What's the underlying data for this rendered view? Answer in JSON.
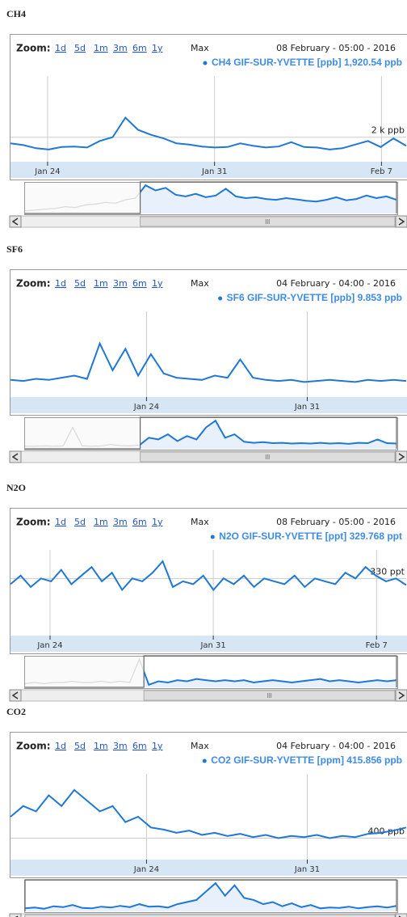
{
  "chart_data": [
    {
      "type": "line",
      "title": "CH4",
      "zoom_label": "Zoom:",
      "zoom_buttons": [
        "1d",
        "5d",
        "1m",
        "3m",
        "6m",
        "1y",
        "Max"
      ],
      "date_label": "08 February - 05:00 - 2016",
      "tooltip": "CH4 GIF-SUR-YVETTE [ppb] 1,920.54 ppb",
      "color": "#1f77d6",
      "grid": true,
      "values": [
        1975,
        1968,
        1955,
        1950,
        1960,
        1962,
        1958,
        1985,
        2000,
        2080,
        2030,
        2010,
        1995,
        1975,
        1970,
        1962,
        1958,
        1960,
        1975,
        1965,
        1958,
        1962,
        1980,
        1960,
        1958,
        1950,
        1955,
        1970,
        1985,
        1960,
        1995,
        1965
      ],
      "xlim": [
        0,
        32
      ],
      "xticks": [
        {
          "value": 3,
          "label": "Jan 24"
        },
        {
          "value": 16.5,
          "label": "Jan 31"
        },
        {
          "value": 30,
          "label": "Feb 7"
        }
      ],
      "ylim": [
        1900,
        2250
      ],
      "yticks": [
        {
          "value": 2000,
          "label": "2 k ppb"
        }
      ],
      "navigator_values": [
        1900,
        1905,
        1910,
        1915,
        1925,
        1920,
        1935,
        1940,
        1950,
        1945,
        1965,
        1975,
        2050,
        2020,
        2035,
        1995,
        1985,
        2000,
        1980,
        1990,
        2030,
        1985,
        1975,
        1980,
        1970,
        1965,
        1975,
        1968,
        1960,
        1955,
        1965,
        1980,
        1962,
        1970,
        1990,
        1975,
        1985,
        1965
      ]
    },
    {
      "type": "line",
      "title": "SF6",
      "zoom_label": "Zoom:",
      "zoom_buttons": [
        "1d",
        "5d",
        "1m",
        "3m",
        "6m",
        "1y",
        "Max"
      ],
      "date_label": "04 February - 04:00 - 2016",
      "tooltip": "SF6 GIF-SUR-YVETTE [ppb] 9.853 ppb",
      "color": "#1f77d6",
      "grid": true,
      "values": [
        9.86,
        9.85,
        9.87,
        9.86,
        9.88,
        9.9,
        9.87,
        10.2,
        9.95,
        10.15,
        9.9,
        10.1,
        9.92,
        9.88,
        9.87,
        9.86,
        9.9,
        9.88,
        10.05,
        9.88,
        9.86,
        9.85,
        9.86,
        9.84,
        9.85,
        9.86,
        9.85,
        9.84,
        9.86,
        9.85,
        9.86,
        9.85
      ],
      "xlim": [
        0,
        32
      ],
      "xticks": [
        {
          "value": 11,
          "label": "Jan 24"
        },
        {
          "value": 24,
          "label": "Jan 31"
        }
      ],
      "ylim": [
        9.7,
        10.5
      ],
      "yticks": [],
      "navigator_values": [
        9.85,
        9.85,
        9.86,
        9.85,
        9.86,
        10.4,
        9.86,
        9.85,
        9.86,
        9.9,
        9.87,
        9.86,
        9.88,
        10.1,
        10.05,
        10.2,
        10.0,
        10.15,
        10.05,
        10.4,
        10.6,
        10.1,
        10.2,
        9.98,
        9.95,
        9.97,
        9.94,
        9.95,
        9.93,
        9.94,
        9.93,
        9.95,
        9.93,
        9.94,
        9.92,
        9.95,
        9.94,
        10.05,
        9.94,
        9.93
      ]
    },
    {
      "type": "line",
      "title": "N2O",
      "zoom_label": "Zoom:",
      "zoom_buttons": [
        "1d",
        "5d",
        "1m",
        "3m",
        "6m",
        "1y",
        "Max"
      ],
      "date_label": "08 February - 05:00 - 2016",
      "tooltip": "N2O GIF-SUR-YVETTE [ppt] 329.768 ppt",
      "color": "#1f77d6",
      "grid": true,
      "values": [
        329.8,
        330.1,
        329.7,
        330.0,
        329.9,
        330.3,
        329.8,
        330.1,
        330.4,
        329.9,
        330.2,
        329.6,
        330.0,
        329.9,
        330.2,
        330.6,
        329.7,
        329.9,
        329.8,
        330.1,
        329.6,
        330.0,
        329.8,
        330.1,
        329.7,
        330.0,
        329.9,
        329.8,
        330.1,
        329.7,
        330.0,
        329.9,
        329.8,
        330.2,
        330.0,
        330.4,
        330.1,
        329.9,
        330.0,
        329.77
      ],
      "xlim": [
        0,
        40
      ],
      "xticks": [
        {
          "value": 4,
          "label": "Jan 24"
        },
        {
          "value": 20.5,
          "label": "Jan 31"
        },
        {
          "value": 37,
          "label": "Feb 7"
        }
      ],
      "ylim": [
        328,
        331
      ],
      "yticks": [
        {
          "value": 330,
          "label": "330 ppt"
        }
      ],
      "navigator_values": [
        329.4,
        329.5,
        329.4,
        329.5,
        329.5,
        329.6,
        329.5,
        329.5,
        329.6,
        329.5,
        329.6,
        329.5,
        331.5,
        329.3,
        329.6,
        329.5,
        329.7,
        329.6,
        329.8,
        329.7,
        329.6,
        329.7,
        329.6,
        329.7,
        329.5,
        329.6,
        329.7,
        329.6,
        329.5,
        329.6,
        329.7,
        329.8,
        329.6,
        329.7,
        329.6,
        329.5,
        329.6,
        329.7,
        329.6,
        329.7
      ]
    },
    {
      "type": "line",
      "title": "CO2",
      "zoom_label": "Zoom:",
      "zoom_buttons": [
        "1d",
        "5d",
        "1m",
        "3m",
        "6m",
        "1y",
        "Max"
      ],
      "date_label": "04 February - 04:00 - 2016",
      "tooltip": "CO2 GIF-SUR-YVETTE [ppm] 415.856 ppb",
      "color": "#1f77d6",
      "grid": true,
      "values": [
        420,
        430,
        425,
        440,
        430,
        445,
        435,
        425,
        430,
        415,
        420,
        410,
        408,
        405,
        407,
        403,
        405,
        402,
        404,
        401,
        403,
        400,
        402,
        401,
        403,
        400,
        402,
        401,
        404,
        405,
        407,
        410
      ],
      "xlim": [
        0,
        32
      ],
      "xticks": [
        {
          "value": 11,
          "label": "Jan 24"
        },
        {
          "value": 24,
          "label": "Jan 31"
        }
      ],
      "ylim": [
        380,
        460
      ],
      "yticks": [
        {
          "value": 400,
          "label": "400 ppb"
        }
      ],
      "navigator_values": [
        400,
        402,
        399,
        405,
        403,
        408,
        401,
        400,
        404,
        402,
        406,
        403,
        410,
        404,
        405,
        402,
        410,
        415,
        420,
        440,
        460,
        430,
        455,
        425,
        420,
        410,
        415,
        405,
        412,
        403,
        408,
        400,
        402,
        401,
        404,
        400,
        403,
        405,
        402,
        406
      ]
    }
  ]
}
